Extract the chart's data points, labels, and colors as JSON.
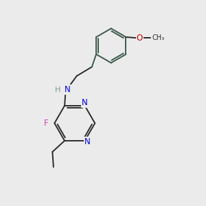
{
  "bg_color": "#ebebeb",
  "bond_color": "#2a2a2a",
  "ring_bond_color": "#3a5a4a",
  "N_color": "#0000dd",
  "O_color": "#cc0000",
  "F_color": "#cc44bb",
  "H_color": "#7a9a8a",
  "font_size": 8.5,
  "bond_width": 1.4,
  "figsize": [
    3.0,
    3.0
  ],
  "dpi": 100,
  "xlim": [
    0,
    10
  ],
  "ylim": [
    0,
    10
  ]
}
